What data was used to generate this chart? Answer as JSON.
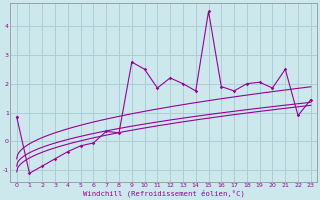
{
  "title": "",
  "xlabel": "Windchill (Refroidissement éolien,°C)",
  "xlim": [
    -0.5,
    23.5
  ],
  "ylim": [
    -1.4,
    4.8
  ],
  "xticks": [
    0,
    1,
    2,
    3,
    4,
    5,
    6,
    7,
    8,
    9,
    10,
    11,
    12,
    13,
    14,
    15,
    16,
    17,
    18,
    19,
    20,
    21,
    22,
    23
  ],
  "yticks": [
    -1,
    0,
    1,
    2,
    3,
    4
  ],
  "bg_color": "#cce8ec",
  "grid_color": "#aacfd4",
  "line_color": "#990099",
  "scatter_x": [
    0,
    1,
    2,
    3,
    4,
    5,
    6,
    7,
    8,
    9,
    10,
    11,
    12,
    13,
    14,
    15,
    16,
    17,
    18,
    19,
    20,
    21,
    22,
    23
  ],
  "scatter_y": [
    0.85,
    -1.1,
    -0.85,
    -0.6,
    -0.35,
    -0.15,
    -0.05,
    0.35,
    0.3,
    2.75,
    2.5,
    1.85,
    2.2,
    2.0,
    1.75,
    4.5,
    1.9,
    1.75,
    2.0,
    2.05,
    1.85,
    2.5,
    0.9,
    1.45
  ],
  "curve_a": [
    -0.9,
    0.06,
    0.0
  ],
  "curve_b": [
    -0.75,
    0.075,
    0.0
  ],
  "curve_c": [
    -0.5,
    0.085,
    -0.0005
  ]
}
